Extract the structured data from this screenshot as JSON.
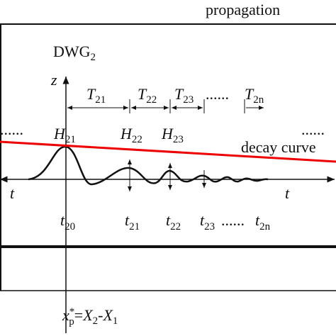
{
  "header": {
    "title": "propagation"
  },
  "panel": {
    "label": {
      "main": "DWG",
      "sub": "2"
    },
    "axis": "z",
    "periods": [
      {
        "main": "T",
        "sub": "21"
      },
      {
        "main": "T",
        "sub": "22"
      },
      {
        "main": "T",
        "sub": "23"
      },
      {
        "main": "T",
        "sub": "2n"
      }
    ],
    "period_ellipsis": "......",
    "left_ellipsis": "......",
    "right_ellipsis": "......",
    "heights": [
      {
        "main": "H",
        "sub": "21"
      },
      {
        "main": "H",
        "sub": "22"
      },
      {
        "main": "H",
        "sub": "23"
      }
    ],
    "decay_label": "decay curve",
    "time_axis": [
      "t",
      "t"
    ],
    "times": [
      {
        "main": "t",
        "sub": "20"
      },
      {
        "main": "t",
        "sub": "21"
      },
      {
        "main": "t",
        "sub": "22"
      },
      {
        "main": "t",
        "sub": "23"
      },
      {
        "main": "t",
        "sub": "2n"
      }
    ],
    "time_ellipsis": "......",
    "formula": {
      "var": "x",
      "sup": "*",
      "sub": "p",
      "eq": "=",
      "a": "X",
      "a_sub": "2",
      "minus": "-",
      "b": "X",
      "b_sub": "1"
    }
  }
}
